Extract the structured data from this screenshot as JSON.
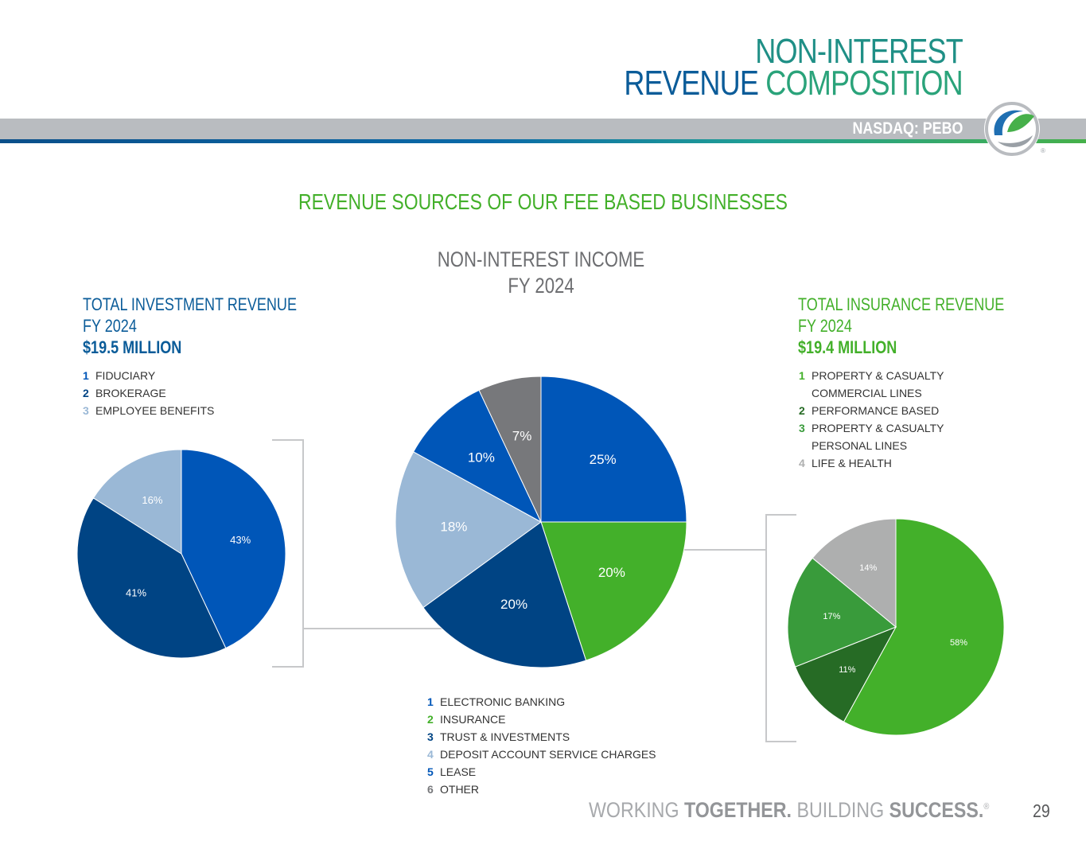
{
  "header": {
    "title_line1": "NON-INTEREST",
    "title_line2_a": "REVENUE",
    "title_line2_b": "COMPOSITION",
    "ticker": "NASDAQ: PEBO"
  },
  "section_title": "REVENUE SOURCES OF OUR FEE BASED BUSINESSES",
  "colors": {
    "blue": "#0056b8",
    "green": "#43b02a",
    "navy": "#004484",
    "light_blue": "#9ab8d6",
    "grey": "#77787b",
    "dark_green": "#266b25",
    "mid_green": "#399b3b",
    "light_grey": "#aeafaf"
  },
  "investment": {
    "title_line1": "TOTAL INVESTMENT REVENUE",
    "title_line2": "FY 2024",
    "amount": "$19.5 MILLION",
    "legend": [
      {
        "num": "1",
        "label": "FIDUCIARY",
        "color": "#0056b8"
      },
      {
        "num": "2",
        "label": "BROKERAGE",
        "color": "#004484"
      },
      {
        "num": "3",
        "label": "EMPLOYEE BENEFITS",
        "color": "#9ab8d6"
      }
    ]
  },
  "insurance": {
    "title_line1": "TOTAL INSURANCE REVENUE",
    "title_line2": "FY 2024",
    "amount": "$19.4 MILLION",
    "legend": [
      {
        "num": "1",
        "label": "PROPERTY & CASUALTY",
        "label2": "COMMERCIAL LINES",
        "color": "#43b02a"
      },
      {
        "num": "2",
        "label": "PERFORMANCE BASED",
        "color": "#266b25"
      },
      {
        "num": "3",
        "label": "PROPERTY & CASUALTY",
        "label2": "PERSONAL LINES",
        "color": "#399b3b"
      },
      {
        "num": "4",
        "label": "LIFE & HEALTH",
        "color": "#aeafaf"
      }
    ]
  },
  "center": {
    "title_line1": "NON-INTEREST INCOME",
    "title_line2": "FY 2024",
    "legend": [
      {
        "num": "1",
        "label": "ELECTRONIC BANKING",
        "color": "#0056b8"
      },
      {
        "num": "2",
        "label": "INSURANCE",
        "color": "#43b02a"
      },
      {
        "num": "3",
        "label": "TRUST & INVESTMENTS",
        "color": "#004484"
      },
      {
        "num": "4",
        "label": "DEPOSIT ACCOUNT SERVICE CHARGES",
        "color": "#9ab8d6"
      },
      {
        "num": "5",
        "label": "LEASE",
        "color": "#0056b8"
      },
      {
        "num": "6",
        "label": "OTHER",
        "color": "#77787b"
      }
    ]
  },
  "chart_data": [
    {
      "type": "pie",
      "title": "NON-INTEREST INCOME FY 2024",
      "categories": [
        "ELECTRONIC BANKING",
        "INSURANCE",
        "TRUST & INVESTMENTS",
        "DEPOSIT ACCOUNT SERVICE CHARGES",
        "LEASE",
        "OTHER"
      ],
      "values": [
        25,
        20,
        20,
        18,
        10,
        7
      ],
      "labels": [
        "25%",
        "20%",
        "20%",
        "18%",
        "10%",
        "7%"
      ],
      "colors": [
        "#0056b8",
        "#43b02a",
        "#004484",
        "#9ab8d6",
        "#0056b8",
        "#77787b"
      ]
    },
    {
      "type": "pie",
      "title": "TOTAL INVESTMENT REVENUE FY 2024",
      "categories": [
        "FIDUCIARY",
        "BROKERAGE",
        "EMPLOYEE BENEFITS"
      ],
      "values": [
        43,
        41,
        16
      ],
      "labels": [
        "43%",
        "41%",
        "16%"
      ],
      "colors": [
        "#0056b8",
        "#004484",
        "#9ab8d6"
      ]
    },
    {
      "type": "pie",
      "title": "TOTAL INSURANCE REVENUE FY 2024",
      "categories": [
        "PROPERTY & CASUALTY COMMERCIAL LINES",
        "PERFORMANCE BASED",
        "PROPERTY & CASUALTY PERSONAL LINES",
        "LIFE & HEALTH"
      ],
      "values": [
        58,
        11,
        17,
        14
      ],
      "labels": [
        "58%",
        "11%",
        "17%",
        "14%"
      ],
      "colors": [
        "#43b02a",
        "#266b25",
        "#399b3b",
        "#aeafaf"
      ]
    }
  ],
  "footer": {
    "part1": "WORKING ",
    "part2": "TOGETHER.",
    "part3": " BUILDING ",
    "part4": "SUCCESS.",
    "reg": "®",
    "page": "29"
  }
}
